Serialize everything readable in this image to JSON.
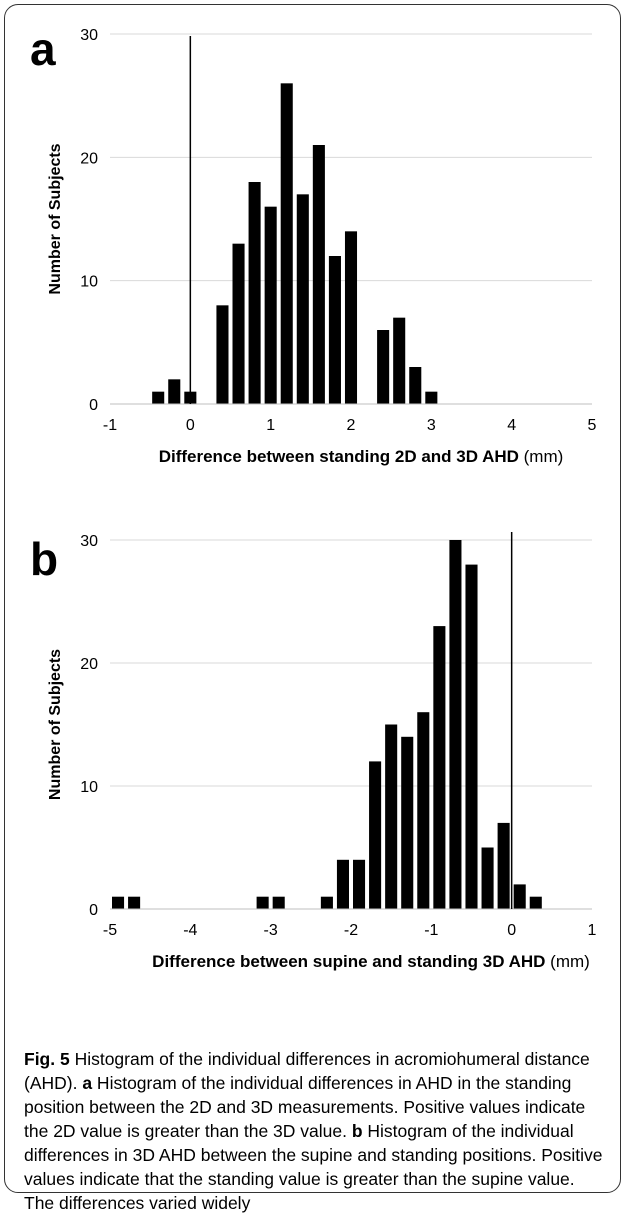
{
  "chart_data": [
    {
      "type": "bar",
      "panel_letter": "a",
      "x": [
        -0.4,
        -0.2,
        0.0,
        0.2,
        0.4,
        0.6,
        0.8,
        1.0,
        1.2,
        1.4,
        1.6,
        1.8,
        2.0,
        2.2,
        2.4,
        2.6,
        2.8,
        3.0,
        3.2,
        3.4
      ],
      "values": [
        1,
        2,
        1,
        0,
        8,
        13,
        18,
        16,
        26,
        17,
        21,
        12,
        14,
        0,
        6,
        7,
        3,
        1,
        0,
        0
      ],
      "ylabel": "Number of Subjects",
      "xlabel_bold": "Difference between standing 2D and 3D AHD",
      "xlabel_unit": " (mm)",
      "xlim": [
        -1,
        5
      ],
      "ylim": [
        0,
        30
      ],
      "xticks": [
        "-1",
        "0",
        "1",
        "2",
        "3",
        "4",
        "5"
      ],
      "yticks": [
        "0",
        "10",
        "20",
        "30"
      ],
      "reference_line_x": 0,
      "grid": true
    },
    {
      "type": "bar",
      "panel_letter": "b",
      "x": [
        -4.9,
        -4.7,
        -3.1,
        -2.9,
        -2.3,
        -2.1,
        -1.9,
        -1.7,
        -1.5,
        -1.3,
        -1.1,
        -0.9,
        -0.7,
        -0.5,
        -0.3,
        -0.1,
        0.1,
        0.3,
        0.5,
        0.7
      ],
      "values": [
        1,
        1,
        1,
        1,
        1,
        4,
        4,
        12,
        15,
        14,
        16,
        23,
        30,
        28,
        5,
        7,
        2,
        1,
        0,
        0
      ],
      "ylabel": "Number of Subjects",
      "xlabel_bold": "Difference between supine and standing 3D AHD",
      "xlabel_unit": " (mm)",
      "xlim": [
        -5,
        1
      ],
      "ylim": [
        0,
        30
      ],
      "xticks": [
        "-5",
        "-4",
        "-3",
        "-2",
        "-1",
        "0",
        "1"
      ],
      "yticks": [
        "0",
        "10",
        "20",
        "30"
      ],
      "reference_line_x": 0,
      "grid": true
    }
  ],
  "caption": {
    "fig_label": "Fig. 5",
    "fig_text": " Histogram of the individual differences in acromiohumeral distance (AHD). ",
    "a_label": "a",
    "a_text": " Histogram of the individual differences in AHD in the standing position between the 2D and 3D measurements. Positive values indicate the 2D value is greater than the 3D value. ",
    "b_label": "b",
    "b_text": " Histogram of the individual differences in 3D AHD between the supine and standing positions. Positive values indicate that the standing value is greater than the supine value. The differences varied widely"
  }
}
